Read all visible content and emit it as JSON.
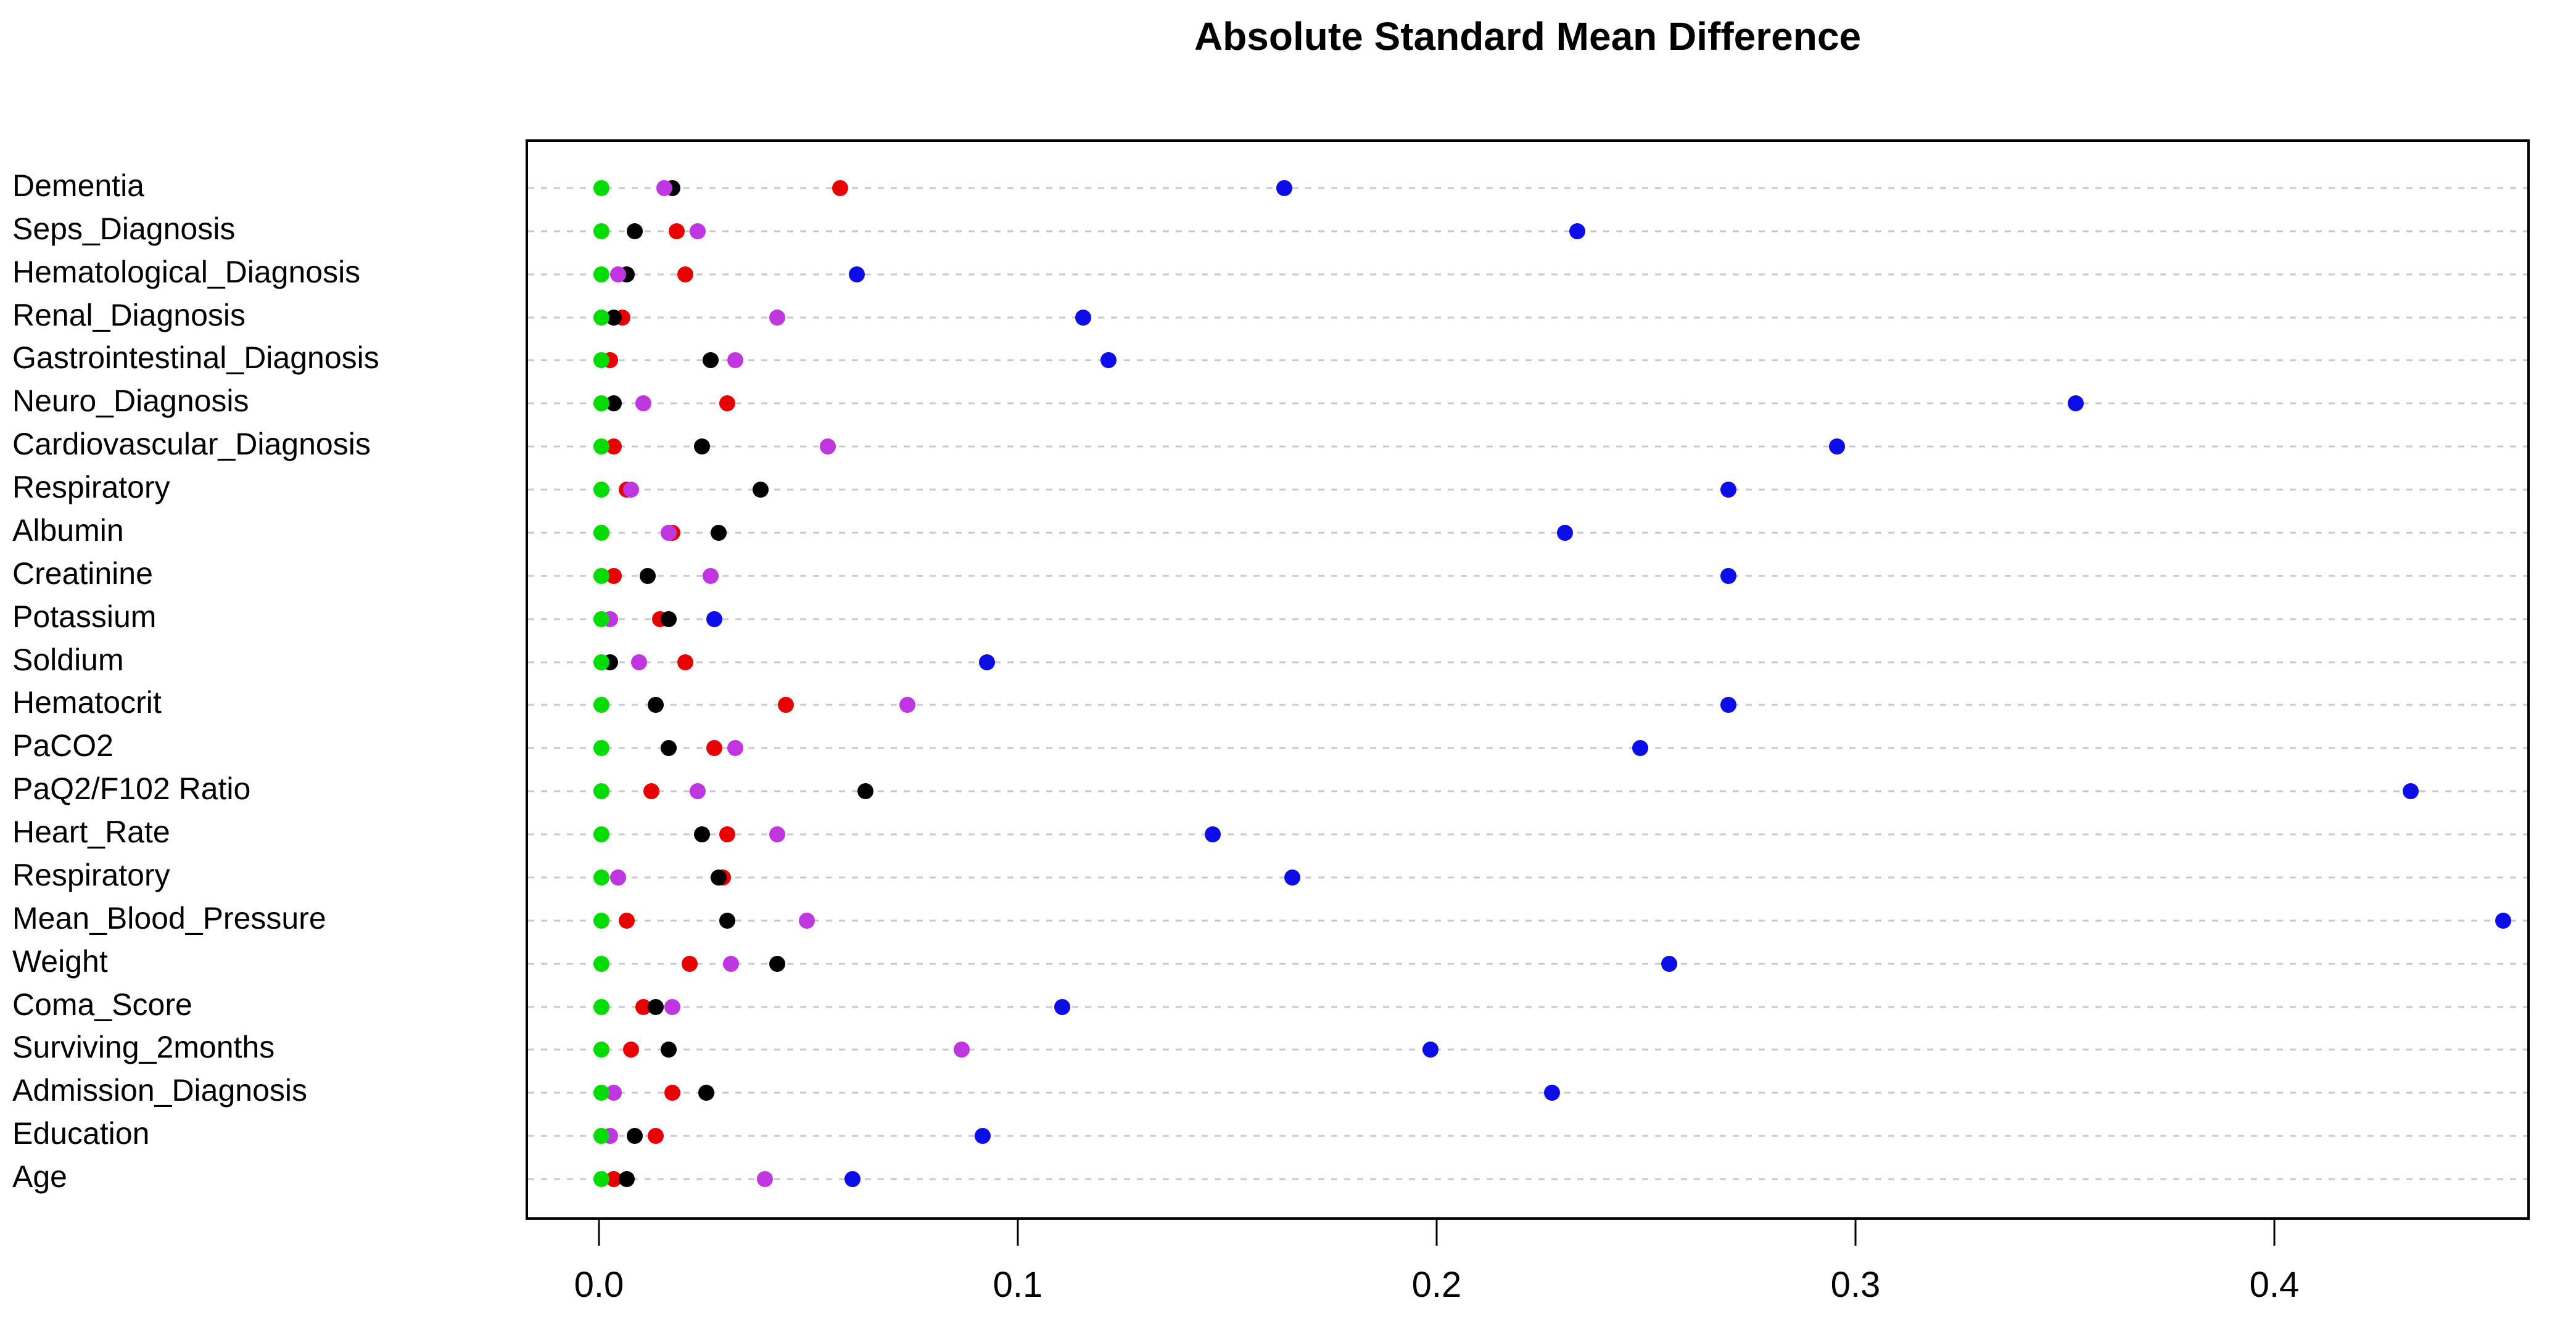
{
  "title": "Absolute Standard Mean Difference",
  "chart_data": {
    "type": "scatter",
    "subtype": "dot-plot-covariate-balance",
    "title": "Absolute Standard Mean Difference",
    "xlabel": "",
    "ylabel": "",
    "xlim": [
      -0.0175,
      0.461
    ],
    "x_tick_values": [
      0.0,
      0.1,
      0.2,
      0.3,
      0.4
    ],
    "x_tick_labels": [
      "0.0",
      "0.1",
      "0.2",
      "0.3",
      "0.4"
    ],
    "grid": "horizontal-dashed-per-category",
    "gridline_color": "#c9c9c9",
    "legend": "none",
    "colors": {
      "green": "#00db00",
      "black": "#000000",
      "red": "#e80000",
      "magenta": "#bf36e0",
      "blue": "#0d0de8"
    },
    "draw_order": [
      "blue",
      "red",
      "black",
      "magenta",
      "green"
    ],
    "categories": [
      "Dementia",
      "Seps_Diagnosis",
      "Hematological_Diagnosis",
      "Renal_Diagnosis",
      "Gastrointestinal_Diagnosis",
      "Neuro_Diagnosis",
      "Cardiovascular_Diagnosis",
      "Respiratory",
      "Albumin",
      "Creatinine",
      "Potassium",
      "Soldium",
      "Hematocrit",
      "PaCO2",
      "PaQ2/F102 Ratio",
      "Heart_Rate",
      "Respiratory",
      "Mean_Blood_Pressure",
      "Weight",
      "Coma_Score",
      "Surviving_2months",
      "Admission_Diagnosis",
      "Education",
      "Age"
    ],
    "series": [
      {
        "name": "green",
        "color_key": "green",
        "values": [
          0.0,
          0.0,
          0.0,
          0.0,
          0.0,
          0.0,
          0.0,
          0.0,
          0.0,
          0.0,
          0.0,
          0.0,
          0.0,
          0.0,
          0.0,
          0.0,
          0.0,
          0.0,
          0.0,
          0.0,
          0.0,
          0.0,
          0.0,
          0.0
        ]
      },
      {
        "name": "black",
        "color_key": "black",
        "values": [
          0.017,
          0.008,
          0.006,
          0.003,
          0.026,
          0.003,
          0.024,
          0.038,
          0.028,
          0.011,
          0.016,
          0.002,
          0.013,
          0.016,
          0.063,
          0.024,
          0.028,
          0.03,
          0.042,
          0.013,
          0.016,
          0.025,
          0.008,
          0.006
        ]
      },
      {
        "name": "red",
        "color_key": "red",
        "values": [
          0.057,
          0.018,
          0.02,
          0.005,
          0.002,
          0.03,
          0.003,
          0.006,
          0.017,
          0.003,
          0.014,
          0.02,
          0.044,
          0.027,
          0.012,
          0.03,
          0.029,
          0.006,
          0.021,
          0.01,
          0.007,
          0.017,
          0.013,
          0.003
        ]
      },
      {
        "name": "magenta",
        "color_key": "magenta",
        "values": [
          0.015,
          0.023,
          0.004,
          0.042,
          0.032,
          0.01,
          0.054,
          0.007,
          0.016,
          0.026,
          0.002,
          0.009,
          0.073,
          0.032,
          0.023,
          0.042,
          0.004,
          0.049,
          0.031,
          0.017,
          0.086,
          0.003,
          0.002,
          0.039
        ]
      },
      {
        "name": "blue",
        "color_key": "blue",
        "values": [
          0.163,
          0.233,
          0.061,
          0.115,
          0.121,
          0.352,
          0.295,
          0.269,
          0.23,
          0.269,
          0.027,
          0.092,
          0.269,
          0.248,
          0.432,
          0.146,
          0.165,
          0.454,
          0.255,
          0.11,
          0.198,
          0.227,
          0.091,
          0.06
        ]
      }
    ]
  }
}
